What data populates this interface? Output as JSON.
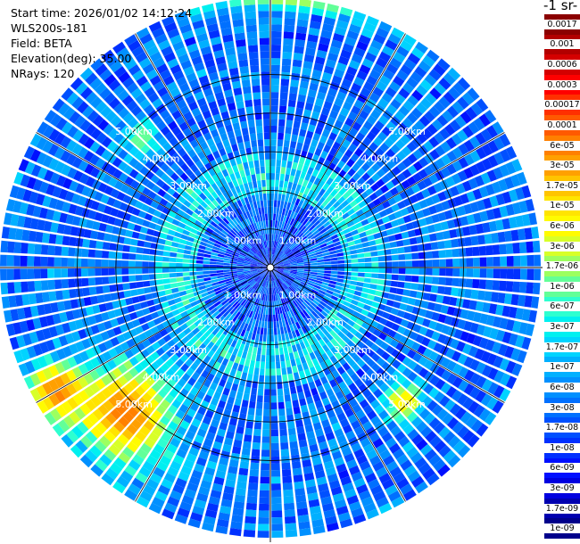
{
  "header": {
    "start_time": "Start time: 2026/01/02 14:12:24",
    "instrument": "WLS200s-181",
    "field": "Field: BETA",
    "elevation": "Elevation(deg): 35.00",
    "nrays": "NRays: 120"
  },
  "colorbar": {
    "title": "-1 sr-",
    "labels": [
      "0.0017",
      "0.001",
      "0.0006",
      "0.0003",
      "0.00017",
      "0.0001",
      "6e-05",
      "3e-05",
      "1.7e-05",
      "1e-05",
      "6e-06",
      "3e-06",
      "1.7e-06",
      "1e-06",
      "6e-07",
      "3e-07",
      "1.7e-07",
      "1e-07",
      "6e-08",
      "3e-08",
      "1.7e-08",
      "1e-08",
      "6e-09",
      "3e-09",
      "1.7e-09",
      "1e-09"
    ],
    "colors": [
      "#8b0000",
      "#b20000",
      "#d40000",
      "#ff0000",
      "#ff3000",
      "#ff5a00",
      "#ff8000",
      "#ffa000",
      "#ffc400",
      "#ffe400",
      "#fffb00",
      "#d8ff28",
      "#9cff60",
      "#62ff98",
      "#2effd0",
      "#00f0f0",
      "#00d4ff",
      "#00b0ff",
      "#0090ff",
      "#0070ff",
      "#0050ff",
      "#0030ff",
      "#0010ff",
      "#0000e0",
      "#0000b0",
      "#00008b"
    ]
  },
  "chart_data": {
    "type": "heatmap",
    "projection": "polar (PPI scan)",
    "rays": 120,
    "range_ring_labels": [
      "1.00km",
      "2.00km",
      "3.00km",
      "4.00km",
      "5.00km"
    ],
    "rings_km": [
      1,
      2,
      3,
      4,
      5
    ],
    "max_range_km": 7.0,
    "color_scale": "log",
    "scale_range": [
      1e-09,
      0.0017
    ],
    "grid": true,
    "typical_values": {
      "inner_0_2km": 1e-08,
      "ring_2_3km": 1.7e-07,
      "outer_3_7km": 3e-08,
      "hotspot_southwest_5km": 6e-05,
      "hotspot_southeast_4_7km": 1e-05,
      "hotspot_northwest_4_5km": 1.7e-06
    }
  }
}
